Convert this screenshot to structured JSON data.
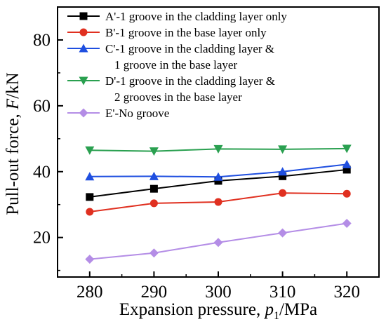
{
  "chart_data": {
    "type": "line",
    "title": "",
    "xlabel": "Expansion pressure, p1/MPa",
    "xlabel_parts": {
      "prefix": "Expansion pressure, ",
      "var": "p",
      "sub": "1",
      "suffix": "/MPa"
    },
    "ylabel": "Pull-out force, F/kN",
    "ylabel_parts": {
      "prefix": "Pull-out force, ",
      "var": "F",
      "suffix": "/kN"
    },
    "x": [
      280,
      290,
      300,
      310,
      320
    ],
    "xlim": [
      275,
      325
    ],
    "ylim": [
      8,
      90
    ],
    "xticks": [
      "280",
      "290",
      "300",
      "310",
      "320"
    ],
    "yticks": [
      20,
      40,
      60,
      80
    ],
    "ytick_labels": [
      "20",
      "40",
      "60",
      "80"
    ],
    "grid": false,
    "legend_position": "top-left",
    "series": [
      {
        "name": "A'-1 groove in the cladding layer only",
        "legend_lines": [
          "A'-1 groove in the cladding layer only"
        ],
        "color": "#000000",
        "marker": "square",
        "values": [
          32.3,
          34.8,
          37.2,
          38.6,
          40.6
        ]
      },
      {
        "name": "B'-1 groove in the base layer only",
        "legend_lines": [
          "B'-1 groove in the base layer only"
        ],
        "color": "#e03020",
        "marker": "circle",
        "values": [
          27.8,
          30.4,
          30.8,
          33.5,
          33.3
        ]
      },
      {
        "name": "C'-1 groove in the cladding layer & 1 groove in the base layer",
        "legend_lines": [
          "C'-1 groove in the cladding layer &",
          "1 groove in the base layer"
        ],
        "color": "#1f4fe0",
        "marker": "triangle-up",
        "values": [
          38.5,
          38.6,
          38.4,
          40.0,
          42.2
        ]
      },
      {
        "name": "D'-1 groove in the cladding layer & 2 grooves in the base layer",
        "legend_lines": [
          "D'-1 groove in the cladding layer &",
          "2 grooves in the base layer"
        ],
        "color": "#2aa050",
        "marker": "triangle-down",
        "values": [
          46.5,
          46.2,
          46.9,
          46.8,
          47.0
        ]
      },
      {
        "name": "E'-No groove",
        "legend_lines": [
          "E'-No groove"
        ],
        "color": "#b48de6",
        "marker": "diamond",
        "values": [
          13.4,
          15.3,
          18.5,
          21.4,
          24.3
        ]
      }
    ]
  }
}
